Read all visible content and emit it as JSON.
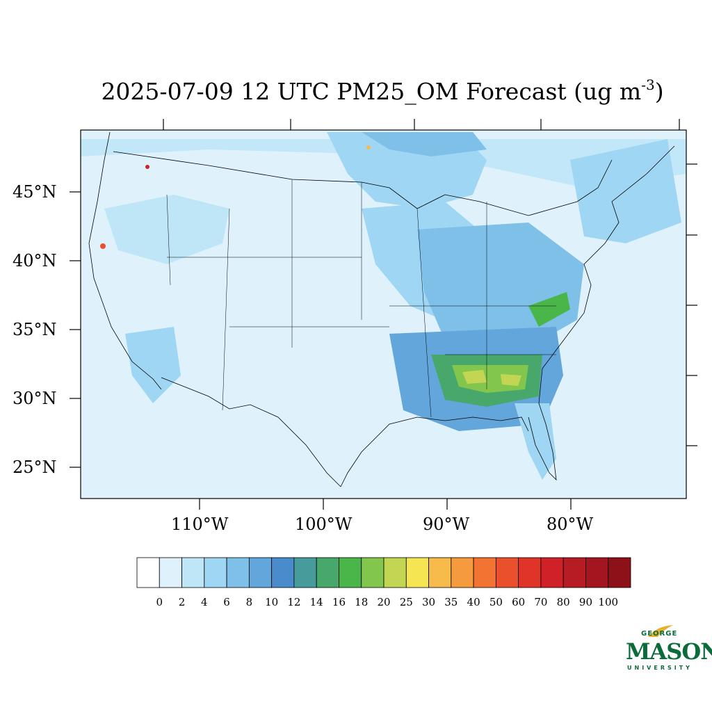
{
  "title": {
    "main": "2025-07-09 12 UTC PM25_OM Forecast (ug m",
    "superscript": "-3",
    "suffix": ")"
  },
  "map": {
    "latitude_labels": [
      "45°N",
      "40°N",
      "35°N",
      "30°N",
      "25°N"
    ],
    "longitude_labels": [
      "110°W",
      "100°W",
      "90°W",
      "80°W"
    ],
    "background_color": "#dff2fb",
    "boundary_color": "#000000"
  },
  "legend": {
    "tick_labels": [
      "0",
      "2",
      "4",
      "6",
      "8",
      "10",
      "12",
      "14",
      "16",
      "18",
      "20",
      "25",
      "30",
      "35",
      "40",
      "50",
      "60",
      "70",
      "80",
      "90",
      "100"
    ],
    "colors": [
      "#ffffff",
      "#dff2fb",
      "#bfe6f7",
      "#9fd6f3",
      "#7fc0e8",
      "#62a6dc",
      "#4a8bcb",
      "#479b9b",
      "#48a86c",
      "#4ab64a",
      "#83c64e",
      "#c2d654",
      "#f6e552",
      "#f6bb4a",
      "#f59a3e",
      "#f27332",
      "#ea502b",
      "#df3427",
      "#d02128",
      "#b71b24",
      "#a3161f",
      "#8d1119"
    ]
  },
  "logo": {
    "line1": "GEORGE",
    "line2": "MASON",
    "line3": "UNIVERSITY",
    "color": "#0b6b3a",
    "accent": "#e6b12e"
  }
}
